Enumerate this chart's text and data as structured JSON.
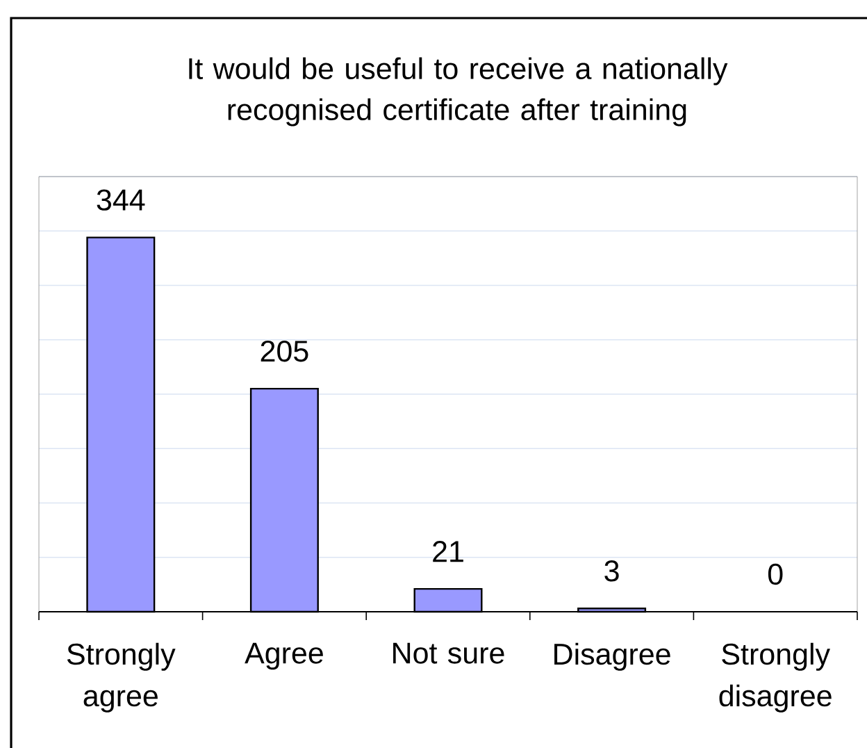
{
  "chart_data": {
    "type": "bar",
    "title": "It would be useful to receive a nationally recognised certificate after training",
    "categories": [
      "Strongly agree",
      "Agree",
      "Not sure",
      "Disagree",
      "Strongly disagree"
    ],
    "values": [
      344,
      205,
      21,
      3,
      0
    ],
    "color": "#9999ff",
    "data_labels": true,
    "ylim": [
      0,
      400
    ],
    "yticks": [
      {
        "value": 0,
        "label": null
      },
      {
        "value": 50,
        "label": null
      },
      {
        "value": 100,
        "label": null
      },
      {
        "value": 150,
        "label": null
      },
      {
        "value": 200,
        "label": null
      },
      {
        "value": 250,
        "label": null
      },
      {
        "value": 300,
        "label": null
      },
      {
        "value": 350,
        "label": null
      },
      {
        "value": 400,
        "label": null
      }
    ],
    "grid": "y",
    "tick_labels": "x"
  }
}
